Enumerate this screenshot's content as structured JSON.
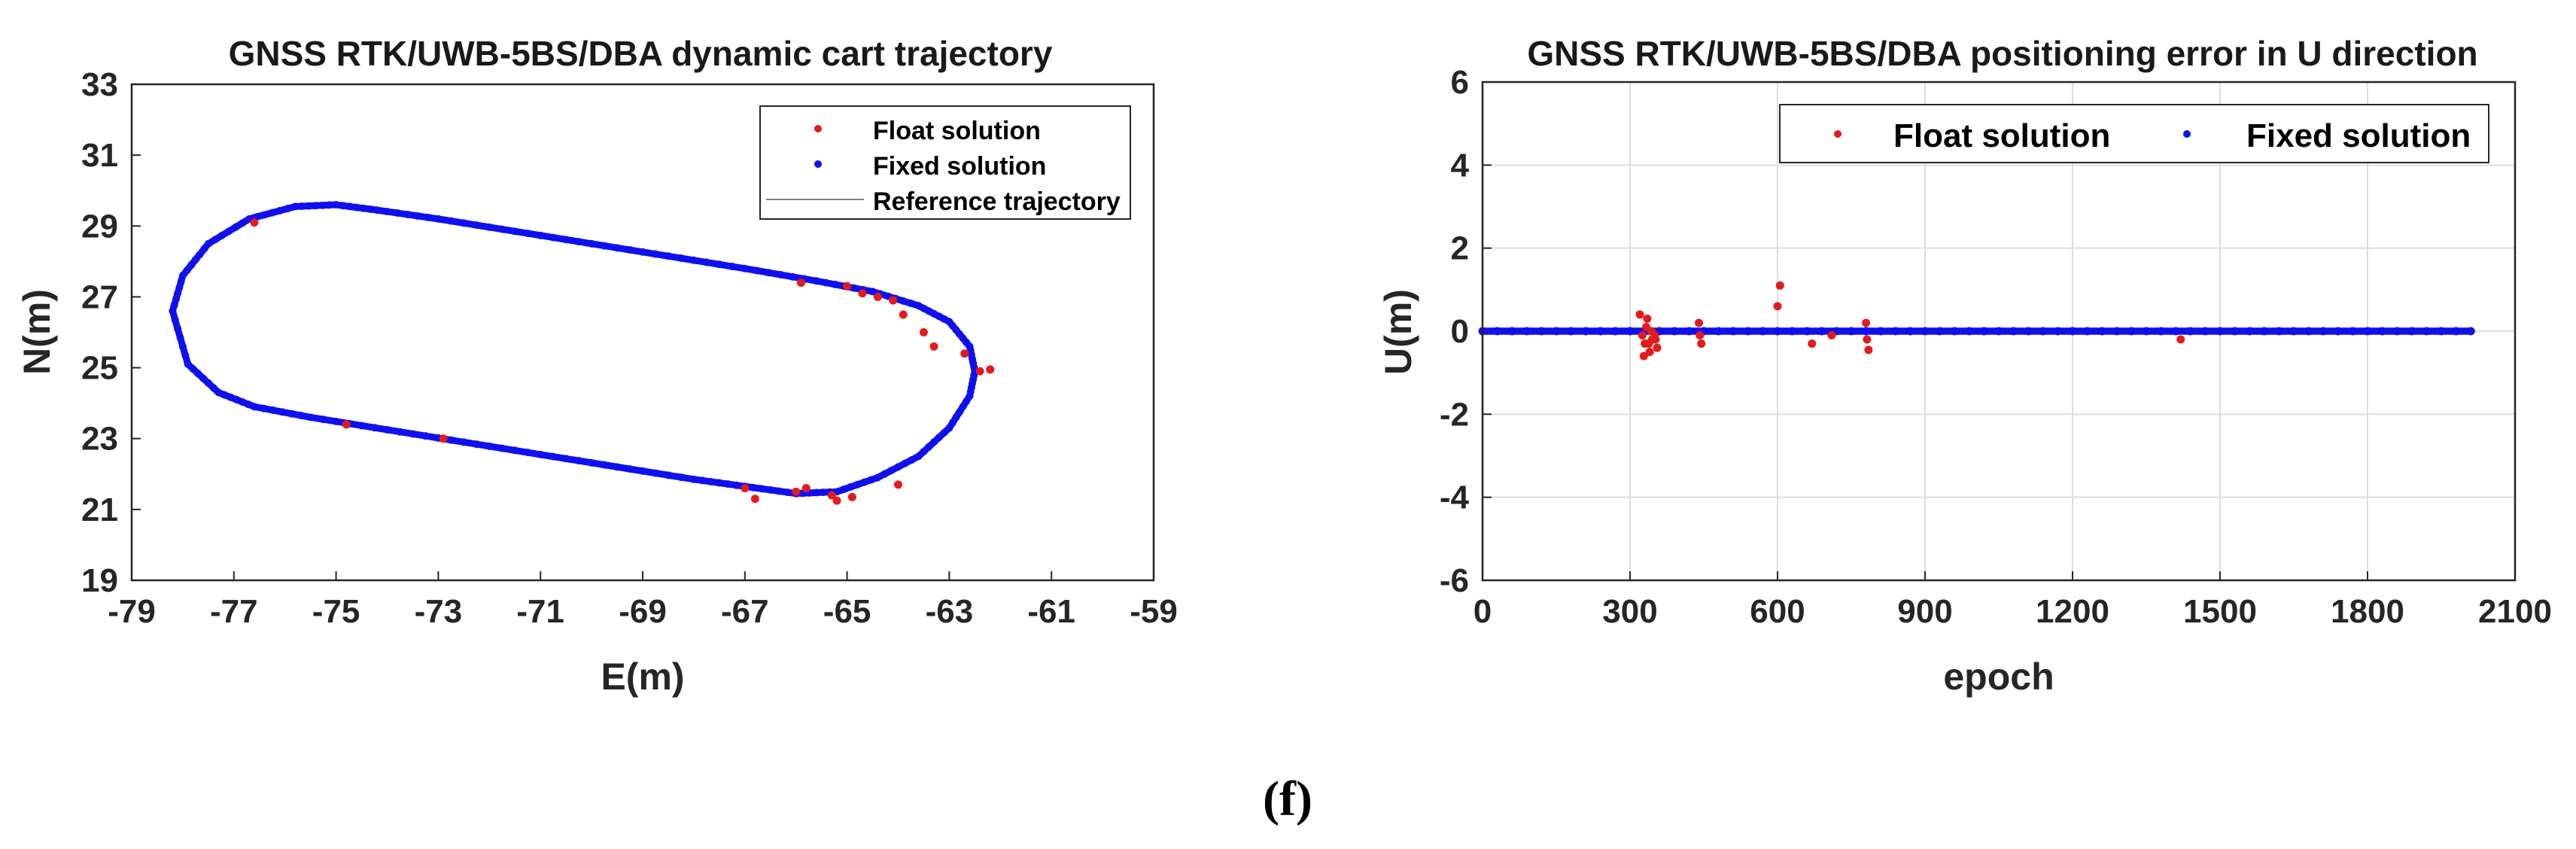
{
  "caption": "(f)",
  "colors": {
    "float": "#e41a1c",
    "fixed": "#1010ee",
    "reference": "#808080",
    "axes": "#262626",
    "grid": "#dddddd"
  },
  "chart_data": [
    {
      "type": "scatter",
      "title": "GNSS RTK/UWB-5BS/DBA dynamic cart trajectory",
      "xlabel": "E(m)",
      "ylabel": "N(m)",
      "xlim": [
        -79,
        -59
      ],
      "ylim": [
        19,
        33
      ],
      "xticks": [
        -79,
        -77,
        -75,
        -73,
        -71,
        -69,
        -67,
        -65,
        -63,
        -61,
        -59
      ],
      "yticks": [
        19,
        21,
        23,
        25,
        27,
        29,
        31,
        33
      ],
      "xtick_labels": [
        "-79",
        "-77",
        "-75",
        "-73",
        "-71",
        "-69",
        "-67",
        "-65",
        "-63",
        "-61",
        "-59"
      ],
      "ytick_labels": [
        "19",
        "21",
        "23",
        "25",
        "27",
        "29",
        "31",
        "33"
      ],
      "grid": false,
      "legend_position": "top-right",
      "legend": [
        "Float solution",
        "Fixed solution",
        "Reference trajectory"
      ],
      "series": [
        {
          "name": "Reference trajectory",
          "kind": "line",
          "closed": true,
          "x": [
            -78.2,
            -78.0,
            -77.5,
            -76.7,
            -75.8,
            -75.0,
            -74.2,
            -73.0,
            -71.5,
            -70.0,
            -68.5,
            -67.0,
            -65.6,
            -64.5,
            -63.6,
            -63.0,
            -62.6,
            -62.5,
            -62.6,
            -63.0,
            -63.6,
            -64.4,
            -65.2,
            -66.0,
            -67.0,
            -68.0,
            -69.5,
            -71.0,
            -72.5,
            -74.0,
            -75.5,
            -76.6,
            -77.3,
            -77.9,
            -78.2
          ],
          "y": [
            26.6,
            27.6,
            28.5,
            29.2,
            29.55,
            29.6,
            29.45,
            29.2,
            28.85,
            28.5,
            28.15,
            27.8,
            27.45,
            27.15,
            26.75,
            26.3,
            25.6,
            24.9,
            24.2,
            23.3,
            22.5,
            21.9,
            21.5,
            21.45,
            21.65,
            21.85,
            22.2,
            22.55,
            22.9,
            23.25,
            23.6,
            23.9,
            24.3,
            25.1,
            26.6
          ]
        },
        {
          "name": "Fixed solution",
          "kind": "markers",
          "x": [
            -78.2,
            -78.0,
            -77.5,
            -76.7,
            -75.8,
            -75.0,
            -74.2,
            -73.0,
            -71.5,
            -70.0,
            -68.5,
            -67.0,
            -65.6,
            -64.5,
            -63.6,
            -63.0,
            -62.6,
            -62.5,
            -62.6,
            -63.0,
            -63.6,
            -64.4,
            -65.2,
            -66.0,
            -67.0,
            -68.0,
            -69.5,
            -71.0,
            -72.5,
            -74.0,
            -75.5,
            -76.6,
            -77.3,
            -77.9,
            -78.2
          ],
          "y": [
            26.6,
            27.6,
            28.5,
            29.2,
            29.55,
            29.6,
            29.45,
            29.2,
            28.85,
            28.5,
            28.15,
            27.8,
            27.45,
            27.15,
            26.75,
            26.3,
            25.6,
            24.9,
            24.2,
            23.3,
            22.5,
            21.9,
            21.5,
            21.45,
            21.65,
            21.85,
            22.2,
            22.55,
            22.9,
            23.25,
            23.6,
            23.9,
            24.3,
            25.1,
            26.6
          ]
        },
        {
          "name": "Float solution",
          "kind": "markers",
          "x": [
            -76.6,
            -74.8,
            -72.9,
            -67.0,
            -66.8,
            -66.0,
            -65.8,
            -65.2,
            -64.9,
            -65.3,
            -64.0,
            -62.4,
            -62.2,
            -62.7,
            -63.3,
            -63.5,
            -63.9,
            -64.1,
            -64.4,
            -64.7,
            -65.0,
            -65.9
          ],
          "y": [
            29.1,
            23.4,
            23.0,
            21.6,
            21.3,
            21.5,
            21.6,
            21.25,
            21.35,
            21.4,
            21.7,
            24.9,
            24.95,
            25.4,
            25.6,
            26.0,
            26.5,
            26.9,
            27.0,
            27.1,
            27.3,
            27.4
          ]
        }
      ]
    },
    {
      "type": "scatter",
      "title": "GNSS RTK/UWB-5BS/DBA positioning error in U direction",
      "xlabel": "epoch",
      "ylabel": "U(m)",
      "xlim": [
        0,
        2100
      ],
      "ylim": [
        -6,
        6
      ],
      "xticks": [
        0,
        300,
        600,
        900,
        1200,
        1500,
        1800,
        2100
      ],
      "yticks": [
        -6,
        -4,
        -2,
        0,
        2,
        4,
        6
      ],
      "xtick_labels": [
        "0",
        "300",
        "600",
        "900",
        "1200",
        "1500",
        "1800",
        "2100"
      ],
      "ytick_labels": [
        "-6",
        "-4",
        "-2",
        "0",
        "2",
        "4",
        "6"
      ],
      "grid": true,
      "legend_position": "top",
      "legend": [
        "Float solution",
        "Fixed solution"
      ],
      "series": [
        {
          "name": "Fixed solution",
          "kind": "band",
          "x_range": [
            0,
            2010
          ],
          "y_values": [
            0.0,
            0.02,
            -0.02,
            0.04,
            -0.04
          ]
        },
        {
          "name": "Float solution",
          "kind": "markers",
          "x": [
            320,
            325,
            330,
            335,
            340,
            345,
            350,
            355,
            328,
            333,
            338,
            343,
            352,
            440,
            442,
            445,
            600,
            605,
            670,
            710,
            780,
            782,
            785,
            1420
          ],
          "y": [
            0.4,
            -0.1,
            -0.3,
            0.3,
            -0.5,
            -0.2,
            -0.1,
            -0.4,
            -0.6,
            0.1,
            -0.3,
            0.0,
            -0.2,
            0.2,
            -0.1,
            -0.3,
            0.6,
            1.1,
            -0.3,
            -0.1,
            0.2,
            -0.2,
            -0.45,
            -0.2
          ]
        }
      ]
    }
  ]
}
